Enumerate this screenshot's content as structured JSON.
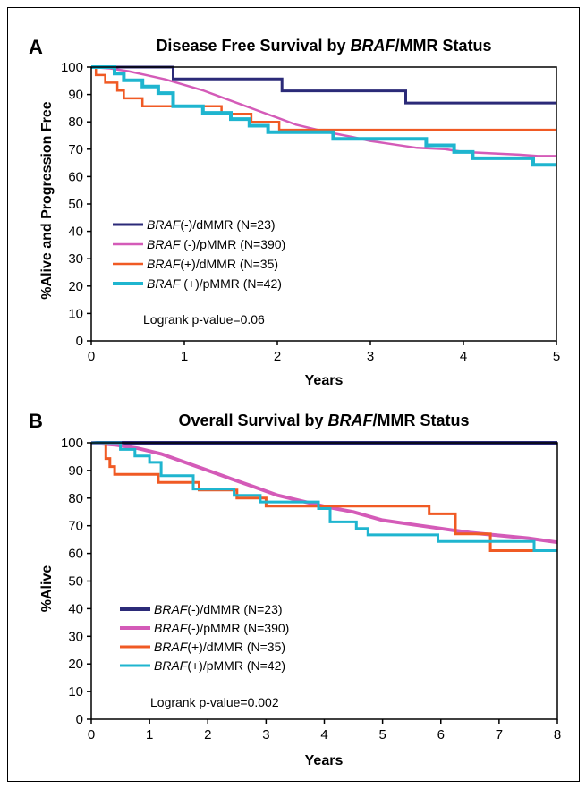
{
  "chart_data": [
    {
      "panel": "A",
      "type": "line",
      "title_pre": "Disease Free Survival by ",
      "title_italic": "BRAF",
      "title_post": "/MMR Status",
      "xlabel": "Years",
      "ylabel": "%Alive and Progression Free",
      "xlim": [
        0,
        5
      ],
      "ylim": [
        0,
        100
      ],
      "xticks": [
        "0",
        "1",
        "2",
        "3",
        "4",
        "5"
      ],
      "yticks": [
        "0",
        "10",
        "20",
        "30",
        "40",
        "50",
        "60",
        "70",
        "80",
        "90",
        "100"
      ],
      "legend_position": "lower-left",
      "note": "Logrank p-value=0.06",
      "series": [
        {
          "name_italic": "BRAF",
          "name_rest": "(-)/dMMR (N=23)",
          "color": "#2b2a78",
          "x": [
            0,
            0.88,
            0.88,
            2.05,
            2.05,
            3.38,
            3.38,
            5
          ],
          "y": [
            100,
            100,
            95.7,
            95.7,
            91.3,
            91.3,
            86.9,
            86.9
          ]
        },
        {
          "name_italic": "BRAF",
          "name_rest": " (-)/pMMR (N=390)",
          "color": "#d45bb8",
          "x": [
            0,
            0.2,
            0.4,
            0.6,
            0.8,
            1.0,
            1.2,
            1.4,
            1.6,
            1.8,
            2.0,
            2.2,
            2.5,
            2.8,
            3.0,
            3.2,
            3.5,
            3.8,
            4.0,
            4.3,
            4.6,
            4.8,
            5.0
          ],
          "y": [
            100,
            99.5,
            98.5,
            97,
            95.5,
            93.5,
            91.5,
            89,
            86.5,
            84,
            81.5,
            79,
            76.5,
            74.5,
            73,
            72,
            70.5,
            70,
            69,
            68.5,
            68,
            67.5,
            67.5
          ]
        },
        {
          "name_italic": "BRAF",
          "name_rest": "(+)/dMMR (N=35)",
          "color": "#f05a24",
          "x": [
            0,
            0.05,
            0.05,
            0.15,
            0.15,
            0.28,
            0.28,
            0.35,
            0.35,
            0.55,
            0.55,
            1.4,
            1.4,
            1.72,
            1.72,
            2.02,
            2.02,
            5
          ],
          "y": [
            100,
            100,
            97.1,
            97.1,
            94.3,
            94.3,
            91.4,
            91.4,
            88.6,
            88.6,
            85.7,
            85.7,
            82.9,
            82.9,
            80,
            80,
            77.1,
            77.1
          ]
        },
        {
          "name_italic": "BRAF",
          "name_rest": " (+)/pMMR (N=42)",
          "color": "#1fb5cf",
          "x": [
            0,
            0.25,
            0.25,
            0.35,
            0.35,
            0.55,
            0.55,
            0.72,
            0.72,
            0.88,
            0.88,
            1.2,
            1.2,
            1.5,
            1.5,
            1.7,
            1.7,
            1.9,
            1.9,
            2.6,
            2.6,
            3.6,
            3.6,
            3.9,
            3.9,
            4.1,
            4.1,
            4.75,
            4.75,
            5
          ],
          "y": [
            100,
            100,
            97.6,
            97.6,
            95.2,
            95.2,
            92.9,
            92.9,
            90.5,
            90.5,
            85.7,
            85.7,
            83.3,
            83.3,
            81,
            81,
            78.6,
            78.6,
            76.2,
            76.2,
            73.8,
            73.8,
            71.4,
            71.4,
            69,
            69,
            66.7,
            66.7,
            64.3,
            64.3
          ]
        }
      ]
    },
    {
      "panel": "B",
      "type": "line",
      "title_pre": "Overall Survival by ",
      "title_italic": "BRAF",
      "title_post": "/MMR Status",
      "xlabel": "Years",
      "ylabel": "%Alive",
      "xlim": [
        0,
        8
      ],
      "ylim": [
        0,
        100
      ],
      "xticks": [
        "0",
        "1",
        "2",
        "3",
        "4",
        "5",
        "6",
        "7",
        "8"
      ],
      "yticks": [
        "0",
        "10",
        "20",
        "30",
        "40",
        "50",
        "60",
        "70",
        "80",
        "90",
        "100"
      ],
      "legend_position": "lower-left",
      "note": "Logrank p-value=0.002",
      "series": [
        {
          "name_italic": "BRAF",
          "name_rest": "(-)/dMMR (N=23)",
          "color": "#2b2a78",
          "x": [
            0,
            8
          ],
          "y": [
            100,
            100
          ]
        },
        {
          "name_italic": "BRAF",
          "name_rest": "(-)/pMMR (N=390)",
          "color": "#d45bb8",
          "x": [
            0,
            0.4,
            0.8,
            1.2,
            1.6,
            2.0,
            2.4,
            2.8,
            3.2,
            3.6,
            4.0,
            4.5,
            5.0,
            5.5,
            6.0,
            6.5,
            7.0,
            7.5,
            8.0
          ],
          "y": [
            100,
            99.3,
            98,
            96,
            93,
            90,
            87,
            84,
            81,
            79,
            77,
            75,
            72,
            70.5,
            69,
            67.5,
            66.5,
            65.5,
            64
          ]
        },
        {
          "name_italic": "BRAF",
          "name_rest": "(+)/dMMR (N=35)",
          "color": "#f05a24",
          "x": [
            0,
            0.25,
            0.25,
            0.32,
            0.32,
            0.4,
            0.4,
            1.15,
            1.15,
            1.85,
            1.85,
            2.5,
            2.5,
            3.0,
            3.0,
            3.75,
            3.75,
            5.8,
            5.8,
            6.25,
            6.25,
            6.85,
            6.85,
            7.7
          ],
          "y": [
            100,
            100,
            94.3,
            94.3,
            91.4,
            91.4,
            88.6,
            88.6,
            85.7,
            85.7,
            82.9,
            82.9,
            80,
            80,
            77.1,
            77.1,
            77.1,
            77.1,
            74.3,
            74.3,
            67.1,
            67.1,
            61,
            61
          ]
        },
        {
          "name_italic": "BRAF",
          "name_rest": "(+)/pMMR (N=42)",
          "color": "#1fb5cf",
          "x": [
            0,
            0.5,
            0.5,
            0.75,
            0.75,
            1.0,
            1.0,
            1.2,
            1.2,
            1.75,
            1.75,
            2.45,
            2.45,
            2.9,
            2.9,
            3.35,
            3.35,
            3.9,
            3.9,
            4.1,
            4.1,
            4.55,
            4.55,
            4.75,
            4.75,
            5.95,
            5.95,
            7.6,
            7.6,
            8
          ],
          "y": [
            100,
            100,
            97.6,
            97.6,
            95.2,
            95.2,
            92.9,
            92.9,
            88.1,
            88.1,
            83.3,
            83.3,
            81,
            81,
            78.6,
            78.6,
            78.6,
            78.6,
            76.2,
            76.2,
            71.4,
            71.4,
            69,
            69,
            66.7,
            66.7,
            64.3,
            64.3,
            61,
            61
          ]
        }
      ]
    }
  ]
}
